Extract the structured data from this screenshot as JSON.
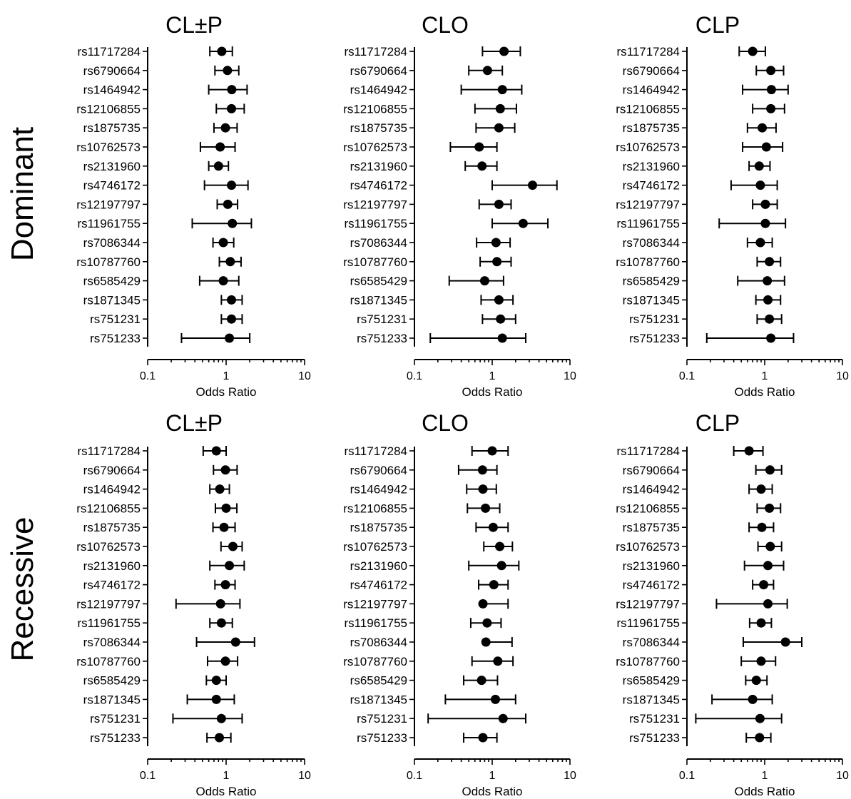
{
  "chart_data": [
    {
      "type": "scatter",
      "group": "Dominant",
      "title": "CL±P",
      "xlabel": "Odds Ratio",
      "xscale": "log",
      "xlim": [
        0.1,
        10
      ],
      "xticks": [
        "0.1",
        "1",
        "10"
      ],
      "categories": [
        "rs11717284",
        "rs6790664",
        "rs1464942",
        "rs12106855",
        "rs1875735",
        "rs10762573",
        "rs2131960",
        "rs4746172",
        "rs12197797",
        "rs11961755",
        "rs7086344",
        "rs10787760",
        "rs6585429",
        "rs1871345",
        "rs751231",
        "rs751233"
      ],
      "or": [
        0.88,
        1.04,
        1.18,
        1.17,
        0.98,
        0.84,
        0.8,
        1.17,
        1.05,
        1.2,
        0.92,
        1.13,
        0.92,
        1.17,
        1.17,
        1.1
      ],
      "lower": [
        0.62,
        0.72,
        0.6,
        0.75,
        0.7,
        0.47,
        0.6,
        0.53,
        0.77,
        0.37,
        0.68,
        0.82,
        0.46,
        0.87,
        0.87,
        0.27
      ],
      "upper": [
        1.2,
        1.45,
        1.85,
        1.7,
        1.38,
        1.3,
        1.07,
        1.9,
        1.4,
        2.1,
        1.25,
        1.55,
        1.45,
        1.6,
        1.6,
        2.0
      ]
    },
    {
      "type": "scatter",
      "group": "Dominant",
      "title": "CLO",
      "xlabel": "Odds Ratio",
      "xscale": "log",
      "xlim": [
        0.1,
        10
      ],
      "xticks": [
        "0.1",
        "1",
        "10"
      ],
      "categories": [
        "rs11717284",
        "rs6790664",
        "rs1464942",
        "rs12106855",
        "rs1875735",
        "rs10762573",
        "rs2131960",
        "rs4746172",
        "rs12197797",
        "rs11961755",
        "rs7086344",
        "rs10787760",
        "rs6585429",
        "rs1871345",
        "rs751231",
        "rs751233"
      ],
      "or": [
        1.42,
        0.87,
        1.35,
        1.27,
        1.22,
        0.68,
        0.74,
        3.3,
        1.22,
        2.5,
        1.12,
        1.15,
        0.8,
        1.22,
        1.28,
        1.35
      ],
      "lower": [
        0.75,
        0.5,
        0.4,
        0.6,
        0.62,
        0.29,
        0.45,
        1.0,
        0.68,
        1.0,
        0.63,
        0.7,
        0.28,
        0.72,
        0.75,
        0.16
      ],
      "upper": [
        2.3,
        1.35,
        2.4,
        2.05,
        1.95,
        1.15,
        1.15,
        6.8,
        1.75,
        5.2,
        1.7,
        1.75,
        1.4,
        1.85,
        2.0,
        2.7
      ]
    },
    {
      "type": "scatter",
      "group": "Dominant",
      "title": "CLP",
      "xlabel": "Odds Ratio",
      "xscale": "log",
      "xlim": [
        0.1,
        10
      ],
      "xticks": [
        "0.1",
        "1",
        "10"
      ],
      "categories": [
        "rs11717284",
        "rs6790664",
        "rs1464942",
        "rs12106855",
        "rs1875735",
        "rs10762573",
        "rs2131960",
        "rs4746172",
        "rs12197797",
        "rs11961755",
        "rs7086344",
        "rs10787760",
        "rs6585429",
        "rs1871345",
        "rs751231",
        "rs751233"
      ],
      "or": [
        0.7,
        1.2,
        1.22,
        1.2,
        0.93,
        1.05,
        0.85,
        0.88,
        1.02,
        1.02,
        0.88,
        1.15,
        1.08,
        1.1,
        1.15,
        1.2
      ],
      "lower": [
        0.47,
        0.78,
        0.52,
        0.7,
        0.6,
        0.52,
        0.63,
        0.37,
        0.7,
        0.26,
        0.6,
        0.8,
        0.45,
        0.77,
        0.8,
        0.18
      ],
      "upper": [
        1.02,
        1.75,
        2.0,
        1.8,
        1.4,
        1.7,
        1.17,
        1.45,
        1.45,
        1.85,
        1.25,
        1.6,
        1.8,
        1.6,
        1.65,
        2.35
      ]
    },
    {
      "type": "scatter",
      "group": "Recessive",
      "title": "CL±P",
      "xlabel": "Odds Ratio",
      "xscale": "log",
      "xlim": [
        0.1,
        10
      ],
      "xticks": [
        "0.1",
        "1",
        "10"
      ],
      "categories": [
        "rs11717284",
        "rs6790664",
        "rs1464942",
        "rs12106855",
        "rs1875735",
        "rs10762573",
        "rs2131960",
        "rs4746172",
        "rs12197797",
        "rs11961755",
        "rs7086344",
        "rs10787760",
        "rs6585429",
        "rs1871345",
        "rs751231",
        "rs751233"
      ],
      "or": [
        0.75,
        0.98,
        0.83,
        1.0,
        0.94,
        1.22,
        1.1,
        0.98,
        0.85,
        0.87,
        1.32,
        0.98,
        0.75,
        0.75,
        0.87,
        0.82
      ],
      "lower": [
        0.51,
        0.69,
        0.62,
        0.73,
        0.68,
        0.86,
        0.62,
        0.72,
        0.23,
        0.62,
        0.42,
        0.58,
        0.56,
        0.32,
        0.21,
        0.57
      ],
      "upper": [
        1.0,
        1.38,
        1.1,
        1.37,
        1.3,
        1.6,
        1.7,
        1.3,
        1.5,
        1.2,
        2.3,
        1.4,
        1.0,
        1.27,
        1.6,
        1.15
      ]
    },
    {
      "type": "scatter",
      "group": "Recessive",
      "title": "CLO",
      "xlabel": "Odds Ratio",
      "xscale": "log",
      "xlim": [
        0.1,
        10
      ],
      "xticks": [
        "0.1",
        "1",
        "10"
      ],
      "categories": [
        "rs11717284",
        "rs6790664",
        "rs1464942",
        "rs12106855",
        "rs1875735",
        "rs10762573",
        "rs2131960",
        "rs4746172",
        "rs12197797",
        "rs11961755",
        "rs7086344",
        "rs10787760",
        "rs6585429",
        "rs1871345",
        "rs751231",
        "rs751233"
      ],
      "or": [
        1.0,
        0.75,
        0.76,
        0.82,
        1.03,
        1.25,
        1.32,
        1.05,
        0.76,
        0.86,
        0.83,
        1.18,
        0.73,
        1.1,
        1.38,
        0.76
      ],
      "lower": [
        0.55,
        0.37,
        0.47,
        0.48,
        0.62,
        0.78,
        0.5,
        0.67,
        null,
        0.53,
        null,
        0.55,
        0.43,
        0.25,
        0.15,
        0.43
      ],
      "upper": [
        1.6,
        1.15,
        1.13,
        1.25,
        1.6,
        1.82,
        2.2,
        1.6,
        1.6,
        1.3,
        1.8,
        1.85,
        1.17,
        2.0,
        2.7,
        1.15
      ]
    },
    {
      "type": "scatter",
      "group": "Recessive",
      "title": "CLP",
      "xlabel": "Odds Ratio",
      "xscale": "log",
      "xlim": [
        0.1,
        10
      ],
      "xticks": [
        "0.1",
        "1",
        "10"
      ],
      "categories": [
        "rs11717284",
        "rs6790664",
        "rs1464942",
        "rs12106855",
        "rs1875735",
        "rs10762573",
        "rs2131960",
        "rs4746172",
        "rs12197797",
        "rs11961755",
        "rs7086344",
        "rs10787760",
        "rs6585429",
        "rs1871345",
        "rs751231",
        "rs751233"
      ],
      "or": [
        0.63,
        1.17,
        0.9,
        1.15,
        0.92,
        1.18,
        1.1,
        0.97,
        1.1,
        0.9,
        1.85,
        0.9,
        0.78,
        0.7,
        0.87,
        0.86
      ],
      "lower": [
        0.4,
        0.77,
        0.63,
        0.8,
        0.63,
        0.82,
        0.55,
        0.7,
        0.24,
        0.64,
        0.53,
        0.5,
        0.57,
        0.21,
        0.13,
        0.58
      ],
      "upper": [
        0.95,
        1.65,
        1.25,
        1.6,
        1.3,
        1.65,
        1.75,
        1.3,
        1.95,
        1.22,
        3.0,
        1.38,
        1.07,
        1.25,
        1.65,
        1.2
      ]
    }
  ],
  "row_titles": [
    "Dominant",
    "Recessive"
  ]
}
